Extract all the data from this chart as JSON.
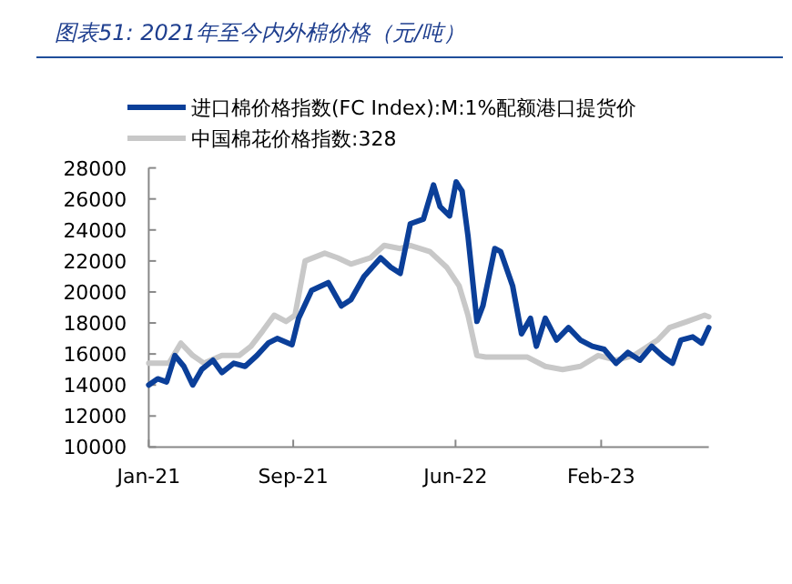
{
  "chart_data": {
    "type": "line",
    "title": "图表51: 2021年至今内外棉价格（元/吨）",
    "legend": "top",
    "grid": false,
    "marker": "none",
    "line_style": "solid",
    "xlim": [
      "2021-01-01",
      "2023-08-01"
    ],
    "xticks": [
      {
        "value": "2021-01-01",
        "label": "Jan-21"
      },
      {
        "value": "2021-09-01",
        "label": "Sep-21"
      },
      {
        "value": "2022-06-01",
        "label": "Jun-22"
      },
      {
        "value": "2023-02-01",
        "label": "Feb-23"
      }
    ],
    "ylim": [
      10000,
      28000
    ],
    "yticks": [
      10000,
      12000,
      14000,
      16000,
      18000,
      20000,
      22000,
      24000,
      26000,
      28000
    ],
    "series": [
      {
        "name": "进口棉价格指数(FC Index):M:1%配额港口提货价",
        "color": "#0b3f99",
        "x": [
          "2021-01-01",
          "2021-01-16",
          "2021-01-31",
          "2021-02-14",
          "2021-03-01",
          "2021-03-16",
          "2021-03-31",
          "2021-04-19",
          "2021-05-04",
          "2021-05-24",
          "2021-06-12",
          "2021-07-02",
          "2021-07-21",
          "2021-08-05",
          "2021-08-30",
          "2021-09-10",
          "2021-10-02",
          "2021-10-30",
          "2021-11-21",
          "2021-12-07",
          "2021-12-29",
          "2022-01-26",
          "2022-02-12",
          "2022-02-28",
          "2022-03-17",
          "2022-04-08",
          "2022-04-25",
          "2022-05-06",
          "2022-05-22",
          "2022-06-02",
          "2022-06-12",
          "2022-06-22",
          "2022-07-07",
          "2022-07-17",
          "2022-08-06",
          "2022-08-16",
          "2022-09-05",
          "2022-09-20",
          "2022-10-05",
          "2022-10-15",
          "2022-10-30",
          "2022-11-18",
          "2022-12-08",
          "2022-12-28",
          "2023-01-17",
          "2023-02-06",
          "2023-02-26",
          "2023-03-18",
          "2023-04-07",
          "2023-04-27",
          "2023-05-17",
          "2023-06-01",
          "2023-06-15",
          "2023-07-05",
          "2023-07-20",
          "2023-08-01"
        ],
        "values": [
          14000,
          14400,
          14200,
          15900,
          15200,
          14000,
          15000,
          15600,
          14800,
          15400,
          15200,
          15900,
          16700,
          17000,
          16600,
          18300,
          20100,
          20600,
          19100,
          19500,
          21000,
          22200,
          21600,
          21200,
          24400,
          24700,
          26900,
          25500,
          24900,
          27100,
          26500,
          23600,
          18100,
          19100,
          22800,
          22600,
          20400,
          17300,
          18300,
          16500,
          18300,
          16900,
          17700,
          16900,
          16500,
          16300,
          15400,
          16100,
          15600,
          16500,
          15800,
          15400,
          16900,
          17100,
          16700,
          17700
        ]
      },
      {
        "name": "中国棉花价格指数:328",
        "color": "#c8c8c8",
        "x": [
          "2021-01-01",
          "2021-02-04",
          "2021-02-24",
          "2021-03-16",
          "2021-04-04",
          "2021-05-04",
          "2021-06-02",
          "2021-06-22",
          "2021-07-12",
          "2021-07-31",
          "2021-08-20",
          "2021-09-04",
          "2021-09-21",
          "2021-10-24",
          "2021-11-15",
          "2021-12-07",
          "2022-01-09",
          "2022-02-01",
          "2022-02-28",
          "2022-03-17",
          "2022-04-19",
          "2022-05-17",
          "2022-06-07",
          "2022-06-22",
          "2022-07-07",
          "2022-07-22",
          "2022-08-21",
          "2022-09-30",
          "2022-10-30",
          "2022-11-28",
          "2022-12-28",
          "2023-01-27",
          "2023-02-26",
          "2023-03-28",
          "2023-05-07",
          "2023-05-27",
          "2023-06-26",
          "2023-07-25",
          "2023-08-01"
        ],
        "values": [
          15400,
          15400,
          16700,
          15900,
          15400,
          15900,
          15900,
          16500,
          17500,
          18500,
          18100,
          18500,
          22000,
          22500,
          22200,
          21800,
          22200,
          23000,
          22800,
          23000,
          22600,
          21600,
          20400,
          18500,
          15900,
          15800,
          15800,
          15800,
          15200,
          15000,
          15200,
          15900,
          15600,
          15900,
          16900,
          17700,
          18100,
          18500,
          18400
        ]
      }
    ]
  }
}
